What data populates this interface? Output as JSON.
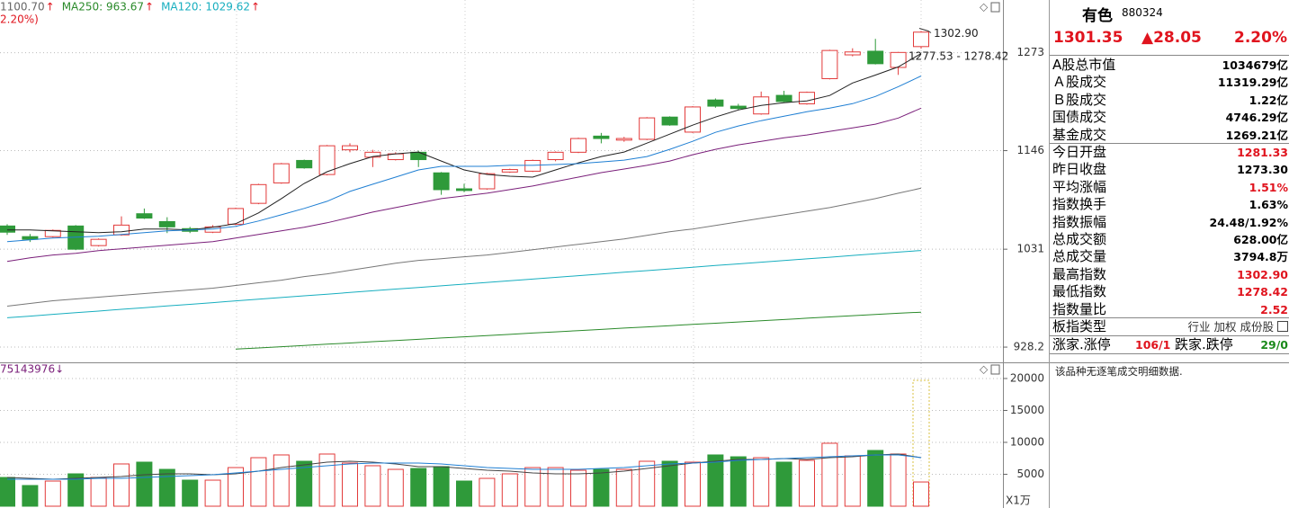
{
  "chart_data": [
    {
      "type": "candlestick",
      "legend": [
        {
          "text": "1100.70",
          "arrow": "↑",
          "color": "#666666"
        },
        {
          "text": "MA250: 963.67",
          "arrow": "↑",
          "color": "#2a8a2a"
        },
        {
          "text": "MA120: 1029.62",
          "arrow": "↑",
          "color": "#17aebf"
        }
      ],
      "note": "2.20%)",
      "open": [
        1057,
        1045,
        1045,
        1057,
        1035,
        1047,
        1071,
        1062,
        1054,
        1050,
        1059,
        1083,
        1107,
        1134,
        1117,
        1147,
        1138,
        1135,
        1144,
        1119,
        1100,
        1100,
        1120,
        1121,
        1135,
        1144,
        1164,
        1159,
        1160,
        1188,
        1169,
        1210,
        1202,
        1192,
        1216,
        1205,
        1238,
        1270,
        1275,
        1253,
        1281.33
      ],
      "high": [
        1059,
        1048,
        1053,
        1058,
        1043,
        1068,
        1077,
        1067,
        1056,
        1058,
        1078,
        1106,
        1131,
        1135,
        1153,
        1155,
        1147,
        1144,
        1146,
        1120,
        1106,
        1119,
        1124,
        1135,
        1145,
        1162,
        1168,
        1163,
        1188,
        1189,
        1202,
        1212,
        1205,
        1221,
        1222,
        1221,
        1277,
        1279,
        1292,
        1274,
        1302.9
      ],
      "low": [
        1047,
        1039,
        1044,
        1030,
        1034,
        1046,
        1065,
        1049,
        1049,
        1049,
        1058,
        1082,
        1106,
        1124,
        1116,
        1144,
        1126,
        1134,
        1126,
        1093,
        1096,
        1099,
        1119,
        1120,
        1133,
        1143,
        1155,
        1157,
        1159,
        1177,
        1168,
        1200,
        1197,
        1191,
        1207,
        1204,
        1237,
        1268,
        1257,
        1243,
        1278.42
      ],
      "close": [
        1050,
        1042,
        1052,
        1031,
        1042,
        1058,
        1066,
        1056,
        1051,
        1056,
        1077,
        1105,
        1130,
        1125,
        1152,
        1152,
        1144,
        1142,
        1135,
        1099,
        1098,
        1118,
        1123,
        1134,
        1144,
        1161,
        1161,
        1161,
        1187,
        1178,
        1201,
        1202,
        1199,
        1214,
        1208,
        1220,
        1276,
        1274,
        1258,
        1273.3,
        1301.35
      ],
      "up_color": "#e23a3a",
      "down_color": "#2f9a3a",
      "series": [
        {
          "color": "#222222",
          "values": [
            1052.6,
            1052.6,
            1051.6,
            1050.5,
            1049.5,
            1050.5,
            1053.6,
            1053.6,
            1052.6,
            1055.6,
            1059.6,
            1071.9,
            1088.5,
            1106.4,
            1120.4,
            1130.1,
            1138.8,
            1142.1,
            1144.3,
            1133.3,
            1122.5,
            1117.1,
            1115,
            1113.9,
            1122.5,
            1131.1,
            1138.8,
            1144.3,
            1155.3,
            1166.5,
            1177.8,
            1188,
            1197.1,
            1202.9,
            1206.4,
            1208.8,
            1215.8,
            1232.2,
            1242.8,
            1253.7,
            1271.8
          ]
        },
        {
          "color": "#1f7fd3",
          "values": [
            1039.4,
            1041.4,
            1043.4,
            1044.5,
            1045.5,
            1047.5,
            1049.5,
            1051.6,
            1052.6,
            1053.6,
            1056.6,
            1062.7,
            1069.8,
            1077.1,
            1085.4,
            1096.9,
            1105.4,
            1113.9,
            1122.5,
            1126.9,
            1126.9,
            1126.9,
            1128,
            1128,
            1129,
            1130.1,
            1132.2,
            1134.4,
            1138.8,
            1147.6,
            1157.5,
            1168.7,
            1176.7,
            1183.5,
            1189.1,
            1194.8,
            1199.4,
            1205.2,
            1214.5,
            1227.4,
            1241.6
          ]
        },
        {
          "color": "#7a1f7a",
          "values": [
            1017.6,
            1021.6,
            1024.6,
            1026.5,
            1029.5,
            1031.5,
            1033.5,
            1035.4,
            1037.4,
            1039.4,
            1043.4,
            1047.5,
            1051.6,
            1055.6,
            1060.6,
            1066.7,
            1072.9,
            1078.1,
            1083.3,
            1088.5,
            1091.7,
            1094.8,
            1099,
            1103.3,
            1108.6,
            1113.9,
            1119.3,
            1123.6,
            1128,
            1133.3,
            1141,
            1147.6,
            1153.1,
            1157.5,
            1162,
            1165.4,
            1169.9,
            1174.4,
            1179,
            1186.8,
            1199.4
          ]
        },
        {
          "color": "#777777",
          "values": [
            969.9,
            972.7,
            975.5,
            977.4,
            979.3,
            981.2,
            983.1,
            985,
            986.9,
            988.8,
            991.7,
            994.5,
            997.3,
            1001.2,
            1004.1,
            1008,
            1011.8,
            1015.7,
            1018.7,
            1020.6,
            1022.6,
            1024.6,
            1027.5,
            1030.5,
            1033.5,
            1036.4,
            1039.4,
            1042.4,
            1046.5,
            1050.5,
            1053.6,
            1057.6,
            1061.7,
            1065.7,
            1069.8,
            1073.9,
            1078.1,
            1083.3,
            1088.5,
            1094.8,
            1100.7
          ]
        },
        {
          "color": "#17aebf",
          "values": [
            957.9,
            959.6,
            961.4,
            963.1,
            964.8,
            966.6,
            968.3,
            970.1,
            971.8,
            973.6,
            975.4,
            977.1,
            978.9,
            980.7,
            982.4,
            984.2,
            986,
            987.8,
            989.6,
            991.3,
            993.1,
            994.9,
            996.7,
            998.5,
            1000.3,
            1002.1,
            1003.9,
            1005.8,
            1007.6,
            1009.4,
            1011.2,
            1013.1,
            1014.9,
            1016.7,
            1018.5,
            1020.4,
            1022.2,
            1024.1,
            1025.9,
            1027.8,
            1029.62
          ]
        },
        {
          "color": "#2a8a2a",
          "values": [
            null,
            null,
            null,
            null,
            null,
            null,
            null,
            null,
            null,
            null,
            926.2,
            927.4,
            928.6,
            929.9,
            931.1,
            932.3,
            933.6,
            934.8,
            936,
            937.3,
            938.5,
            939.8,
            941,
            942.3,
            943.5,
            944.8,
            946,
            947.3,
            948.5,
            949.8,
            951.1,
            952.3,
            953.6,
            954.9,
            956.1,
            957.4,
            958.7,
            960,
            961.3,
            962.5,
            963.67
          ]
        }
      ],
      "ylim": [
        915.8,
        1347
      ],
      "log_scale": true,
      "yticks": [
        1273,
        1146,
        1031,
        928.2
      ],
      "high_label": {
        "value": 1302.9,
        "label": "1302.90"
      },
      "range_label": "1277.53 - 1278.42"
    },
    {
      "type": "bar",
      "note": "75143976↓",
      "unit_label": "X1万",
      "values": [
        4500,
        3240,
        3940,
        5070,
        4500,
        6620,
        6900,
        5770,
        4080,
        4080,
        6050,
        7600,
        8030,
        7040,
        8170,
        6760,
        6340,
        5770,
        5910,
        6200,
        3940,
        4360,
        5070,
        6050,
        6050,
        5630,
        5770,
        5770,
        7040,
        7040,
        6900,
        8030,
        7740,
        7600,
        6900,
        7180,
        9860,
        7880,
        8730,
        8170,
        3794.8
      ],
      "series": [
        {
          "color": "#444444",
          "values": [
            4506,
            4365,
            4224,
            4365,
            4506,
            4646,
            4928,
            5069,
            5069,
            4928,
            5069,
            5491,
            6054,
            6477,
            6899,
            7040,
            6899,
            6618,
            6195,
            6195,
            5914,
            5632,
            5491,
            5210,
            5069,
            5069,
            5210,
            5491,
            5914,
            6336,
            6758,
            7040,
            7322,
            7322,
            7462,
            7322,
            7603,
            7744,
            8026,
            8166,
            7603
          ]
        },
        {
          "color": "#1f7fd3",
          "values": [
            4224,
            4224,
            4224,
            4224,
            4365,
            4365,
            4506,
            4646,
            4787,
            4928,
            5210,
            5491,
            5773,
            6054,
            6336,
            6618,
            6758,
            6758,
            6758,
            6618,
            6336,
            6054,
            5914,
            5773,
            5773,
            5773,
            5914,
            6054,
            6336,
            6618,
            6758,
            6899,
            7181,
            7322,
            7462,
            7603,
            7744,
            7885,
            8026,
            8026,
            7603
          ]
        }
      ],
      "ylim": [
        0,
        22390
      ],
      "yticks": [
        5000,
        10000,
        15000,
        20000
      ]
    }
  ],
  "panel": {
    "name": "有色",
    "code": "880324",
    "price": 1301.35,
    "change": "▲28.05",
    "change_pct": "2.20%",
    "rows": [
      {
        "label": "A股总市值",
        "value": "1034679亿",
        "color": "#000000"
      },
      {
        "label": "Ａ股成交",
        "value": "11319.29亿",
        "color": "#000000"
      },
      {
        "label": "Ｂ股成交",
        "value": "1.22亿",
        "color": "#000000"
      },
      {
        "label": "国债成交",
        "value": "4746.29亿",
        "color": "#000000"
      },
      {
        "label": "基金成交",
        "value": "1269.21亿",
        "color": "#000000"
      },
      {
        "label": "今日开盘",
        "value": "1281.33",
        "color": "#e0141e"
      },
      {
        "label": "昨日收盘",
        "value": "1273.30",
        "color": "#000000"
      },
      {
        "label": "平均涨幅",
        "value": "1.51%",
        "color": "#e0141e"
      },
      {
        "label": "指数换手",
        "value": "1.63%",
        "color": "#000000"
      },
      {
        "label": "指数振幅",
        "value": "24.48/1.92%",
        "color": "#000000"
      },
      {
        "label": "总成交额",
        "value": "628.00亿",
        "color": "#000000"
      },
      {
        "label": "总成交量",
        "value": "3794.8万",
        "color": "#000000"
      },
      {
        "label": "最高指数",
        "value": "1302.90",
        "color": "#e0141e"
      },
      {
        "label": "最低指数",
        "value": "1278.42",
        "color": "#e0141e"
      },
      {
        "label": "指数量比",
        "value": "2.52",
        "color": "#e0141e"
      },
      {
        "label": "板指类型",
        "value": "行业 加权 成份股",
        "color": "#333333"
      }
    ],
    "up_label": "涨家.涨停",
    "up_value": "106/1",
    "down_label": "跌家.跌停",
    "down_value": "29/0",
    "footer": "该品种无逐笔成交明细数据."
  }
}
